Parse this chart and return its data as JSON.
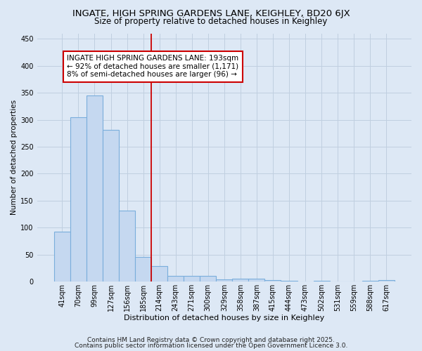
{
  "title1": "INGATE, HIGH SPRING GARDENS LANE, KEIGHLEY, BD20 6JX",
  "title2": "Size of property relative to detached houses in Keighley",
  "xlabel": "Distribution of detached houses by size in Keighley",
  "ylabel": "Number of detached properties",
  "categories": [
    "41sqm",
    "70sqm",
    "99sqm",
    "127sqm",
    "156sqm",
    "185sqm",
    "214sqm",
    "243sqm",
    "271sqm",
    "300sqm",
    "329sqm",
    "358sqm",
    "387sqm",
    "415sqm",
    "444sqm",
    "473sqm",
    "502sqm",
    "531sqm",
    "559sqm",
    "588sqm",
    "617sqm"
  ],
  "values": [
    93,
    305,
    345,
    281,
    132,
    46,
    29,
    10,
    11,
    10,
    4,
    5,
    5,
    3,
    1,
    0,
    1,
    0,
    0,
    2,
    3
  ],
  "bar_color": "#c5d8f0",
  "bar_edge_color": "#7aaedc",
  "red_line_x": 5.5,
  "annotation_text": "INGATE HIGH SPRING GARDENS LANE: 193sqm\n← 92% of detached houses are smaller (1,171)\n8% of semi-detached houses are larger (96) →",
  "annotation_box_color": "#ffffff",
  "annotation_box_edge_color": "#cc0000",
  "red_line_color": "#cc0000",
  "grid_color": "#c0cfe0",
  "background_color": "#dde8f5",
  "footer1": "Contains HM Land Registry data © Crown copyright and database right 2025.",
  "footer2": "Contains public sector information licensed under the Open Government Licence 3.0.",
  "ylim": [
    0,
    460
  ],
  "title1_fontsize": 9.5,
  "title2_fontsize": 8.5,
  "xlabel_fontsize": 8,
  "ylabel_fontsize": 7.5,
  "tick_fontsize": 7,
  "annotation_fontsize": 7.5,
  "footer_fontsize": 6.5
}
